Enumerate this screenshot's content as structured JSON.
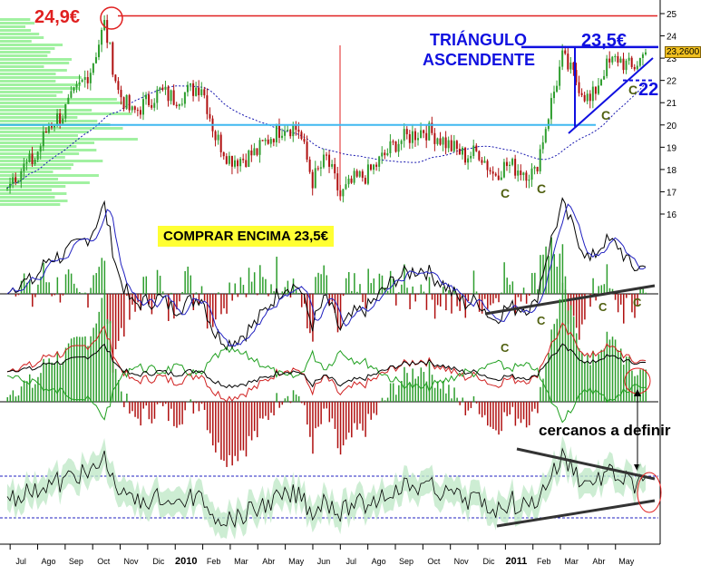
{
  "chart_data": {
    "type": "candlestick",
    "title": "",
    "x_labels": [
      "Jul",
      "Ago",
      "Sep",
      "Oct",
      "Nov",
      "Dic",
      "2010",
      "Feb",
      "Mar",
      "Abr",
      "May",
      "Jun",
      "Jul",
      "Ago",
      "Sep",
      "Oct",
      "Nov",
      "Dic",
      "2011",
      "Feb",
      "Mar",
      "Abr",
      "May"
    ],
    "y_ticks": [
      16,
      17,
      18,
      19,
      20,
      21,
      22,
      23,
      24,
      25
    ],
    "ylim": [
      15.8,
      25.2
    ],
    "last_price": "23,2600",
    "closes_semimonthly": [
      17.5,
      18,
      18.5,
      20,
      20.5,
      21.5,
      22.5,
      24.5,
      21.5,
      20.5,
      21,
      21.5,
      21.2,
      21.5,
      21.8,
      19.5,
      18.5,
      18.5,
      18.8,
      19.5,
      20,
      19.8,
      17.5,
      18.5,
      16.8,
      17.5,
      17.8,
      18.5,
      19.2,
      19.5,
      19.8,
      19.5,
      19,
      18.6,
      18.8,
      17.8,
      18.2,
      18,
      17.8,
      20.5,
      23,
      22,
      21,
      22.5,
      23,
      22.5,
      23.26
    ],
    "levels": {
      "high": 24.9,
      "resistance": 23.5,
      "support": 22,
      "old_support": 20
    },
    "colors": {
      "up": "#2e9e2e",
      "down": "#b01010",
      "annotation_red": "#e02020",
      "annotation_blue": "#1010e0",
      "support_cyan": "#40b8f0",
      "volume_profile": "#90ee90",
      "highlight": "#ffff33"
    }
  },
  "annotations": {
    "high_label": "24,9€",
    "pattern_line1": "TRIÁNGULO",
    "pattern_line2": "ASCENDENTE",
    "resistance_label": "23,5€",
    "support_label": "22",
    "buy_label": "COMPRAR ENCIMA 23,5€",
    "note": "cercanos a definir",
    "c_mark": "C"
  }
}
